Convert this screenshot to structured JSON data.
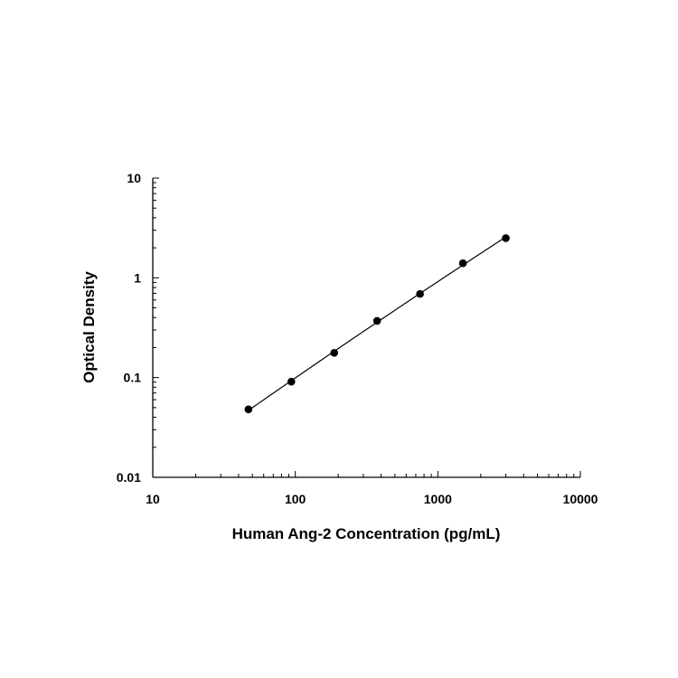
{
  "chart_data": {
    "type": "scatter",
    "xlabel": "Human Ang-2 Concentration (pg/mL)",
    "ylabel": "Optical Density",
    "x_scale": "log",
    "y_scale": "log",
    "xlim": [
      10,
      10000
    ],
    "ylim": [
      0.01,
      10
    ],
    "x_ticks": [
      "10",
      "100",
      "1000",
      "10000"
    ],
    "y_ticks": [
      "0.01",
      "0.1",
      "1",
      "10"
    ],
    "grid": false,
    "legend": "none",
    "fit_curve": true,
    "series": [
      {
        "x": [
          46.9,
          93.8,
          187.5,
          375,
          750,
          1500,
          3000
        ],
        "y": [
          0.048,
          0.091,
          0.177,
          0.37,
          0.69,
          1.4,
          2.5
        ]
      }
    ],
    "colors": {
      "points": "#000000",
      "curve": "#000000",
      "axes": "#000000"
    }
  }
}
